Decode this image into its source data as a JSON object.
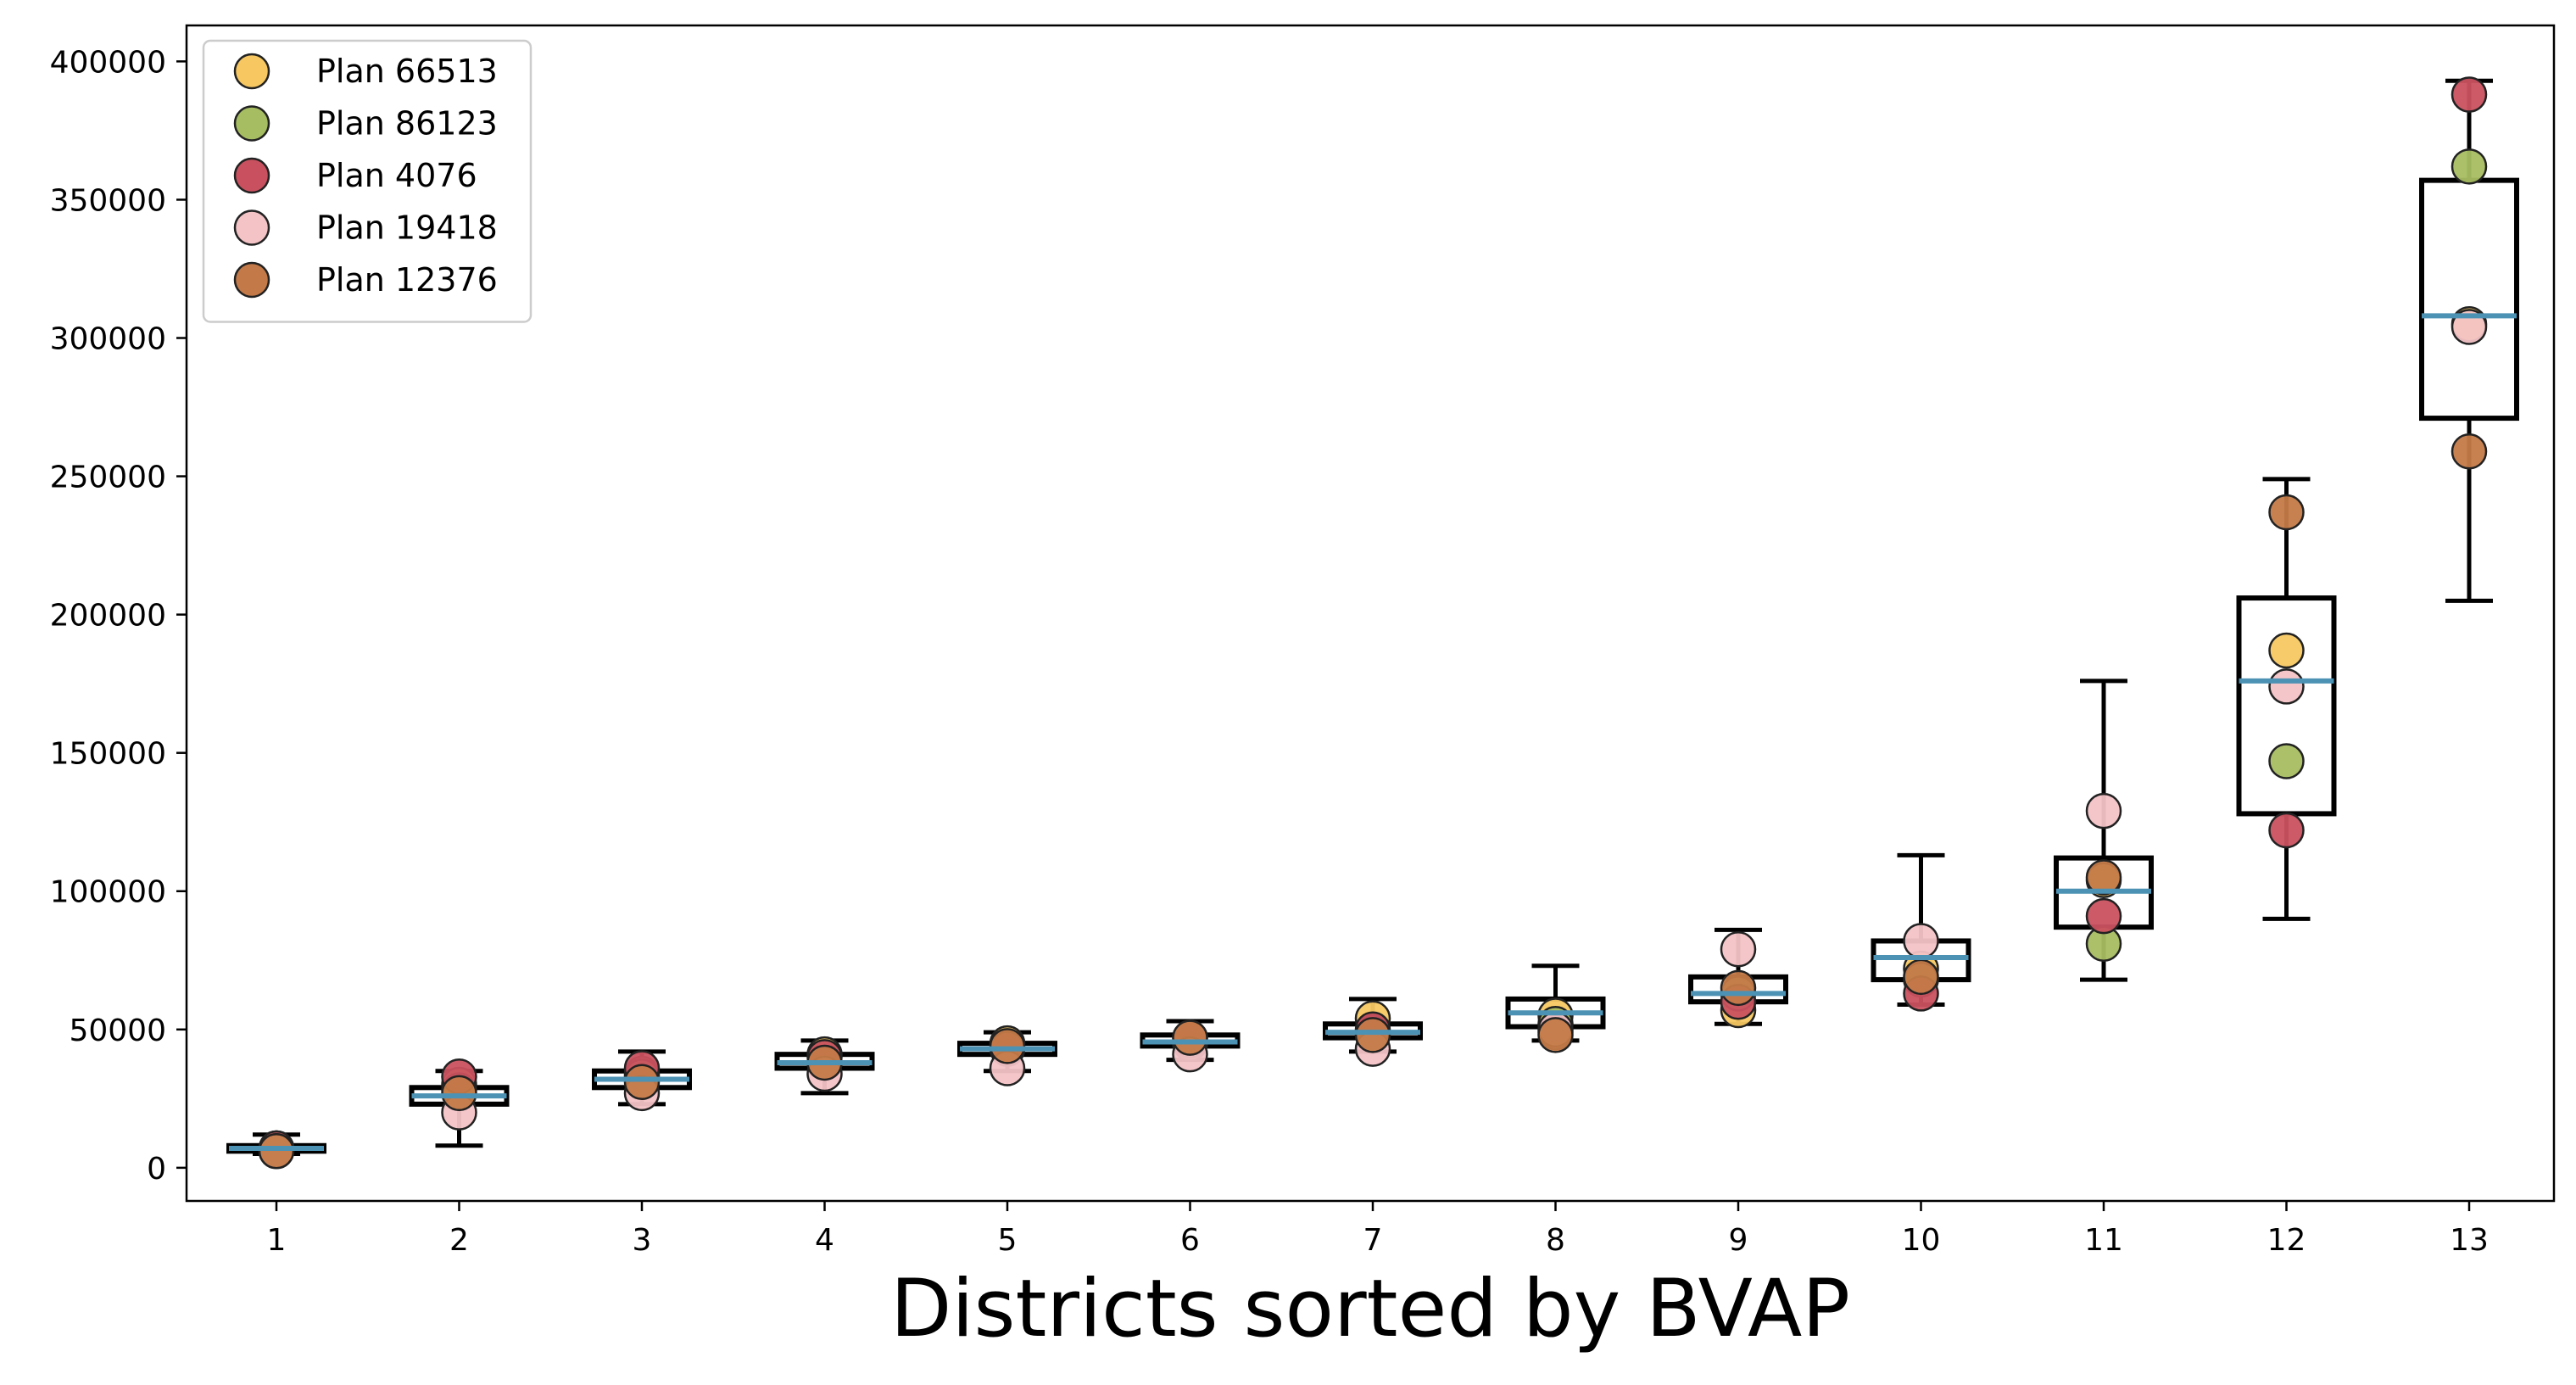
{
  "chart_data": {
    "type": "box",
    "title": "",
    "xlabel": "Districts sorted by BVAP",
    "ylabel": "",
    "categories": [
      "1",
      "2",
      "3",
      "4",
      "5",
      "6",
      "7",
      "8",
      "9",
      "10",
      "11",
      "12",
      "13"
    ],
    "ylim": [
      -12000,
      413000
    ],
    "yticks": [
      0,
      50000,
      100000,
      150000,
      200000,
      250000,
      300000,
      350000,
      400000
    ],
    "ytick_labels": [
      "0",
      "50000",
      "100000",
      "150000",
      "200000",
      "250000",
      "300000",
      "350000",
      "400000"
    ],
    "grid": false,
    "legend_position": "top-left",
    "boxes": [
      {
        "whislo": 5000,
        "q1": 6000,
        "med": 7000,
        "q3": 8000,
        "whishi": 12000
      },
      {
        "whislo": 8000,
        "q1": 23000,
        "med": 26000,
        "q3": 29000,
        "whishi": 35000
      },
      {
        "whislo": 23000,
        "q1": 29000,
        "med": 32000,
        "q3": 35000,
        "whishi": 42000
      },
      {
        "whislo": 27000,
        "q1": 36000,
        "med": 38000,
        "q3": 41000,
        "whishi": 46000
      },
      {
        "whislo": 35000,
        "q1": 41000,
        "med": 43000,
        "q3": 45000,
        "whishi": 49000
      },
      {
        "whislo": 39000,
        "q1": 44000,
        "med": 45500,
        "q3": 48000,
        "whishi": 53000
      },
      {
        "whislo": 42000,
        "q1": 47000,
        "med": 49000,
        "q3": 52000,
        "whishi": 61000
      },
      {
        "whislo": 46000,
        "q1": 51000,
        "med": 56000,
        "q3": 61000,
        "whishi": 73000
      },
      {
        "whislo": 52000,
        "q1": 60000,
        "med": 63000,
        "q3": 69000,
        "whishi": 86000
      },
      {
        "whislo": 59000,
        "q1": 68000,
        "med": 76000,
        "q3": 82000,
        "whishi": 113000
      },
      {
        "whislo": 68000,
        "q1": 87000,
        "med": 100000,
        "q3": 112000,
        "whishi": 176000
      },
      {
        "whislo": 90000,
        "q1": 128000,
        "med": 176000,
        "q3": 206000,
        "whishi": 249000
      },
      {
        "whislo": 205000,
        "q1": 271000,
        "med": 308000,
        "q3": 357000,
        "whishi": 393000
      }
    ],
    "series": [
      {
        "name": "Plan 66513",
        "color": "#f7c862",
        "values": [
          7000,
          30000,
          34000,
          41000,
          45000,
          45000,
          54000,
          55000,
          57000,
          72000,
          104000,
          187000,
          305000
        ]
      },
      {
        "name": "Plan 86123",
        "color": "#a6bd61",
        "values": [
          7000,
          28000,
          33000,
          38000,
          43000,
          46000,
          49000,
          52000,
          63000,
          68000,
          81000,
          147000,
          362000
        ]
      },
      {
        "name": "Plan 4076",
        "color": "#c9515f",
        "values": [
          7000,
          33000,
          36000,
          40000,
          43000,
          47000,
          50000,
          49000,
          60000,
          63000,
          91000,
          122000,
          388000
        ]
      },
      {
        "name": "Plan 19418",
        "color": "#f3c3c6",
        "values": [
          6000,
          20000,
          27000,
          34000,
          36000,
          41000,
          43000,
          50000,
          79000,
          82000,
          129000,
          174000,
          304000
        ]
      },
      {
        "name": "Plan 12376",
        "color": "#c47a48",
        "values": [
          6000,
          27000,
          31000,
          38000,
          44000,
          47000,
          48000,
          48000,
          65000,
          69000,
          105000,
          237000,
          259000
        ]
      }
    ],
    "colors": {
      "box": "#000000",
      "median": "#4c92b4",
      "marker_edge": "#222222",
      "axes": "#000000"
    }
  }
}
